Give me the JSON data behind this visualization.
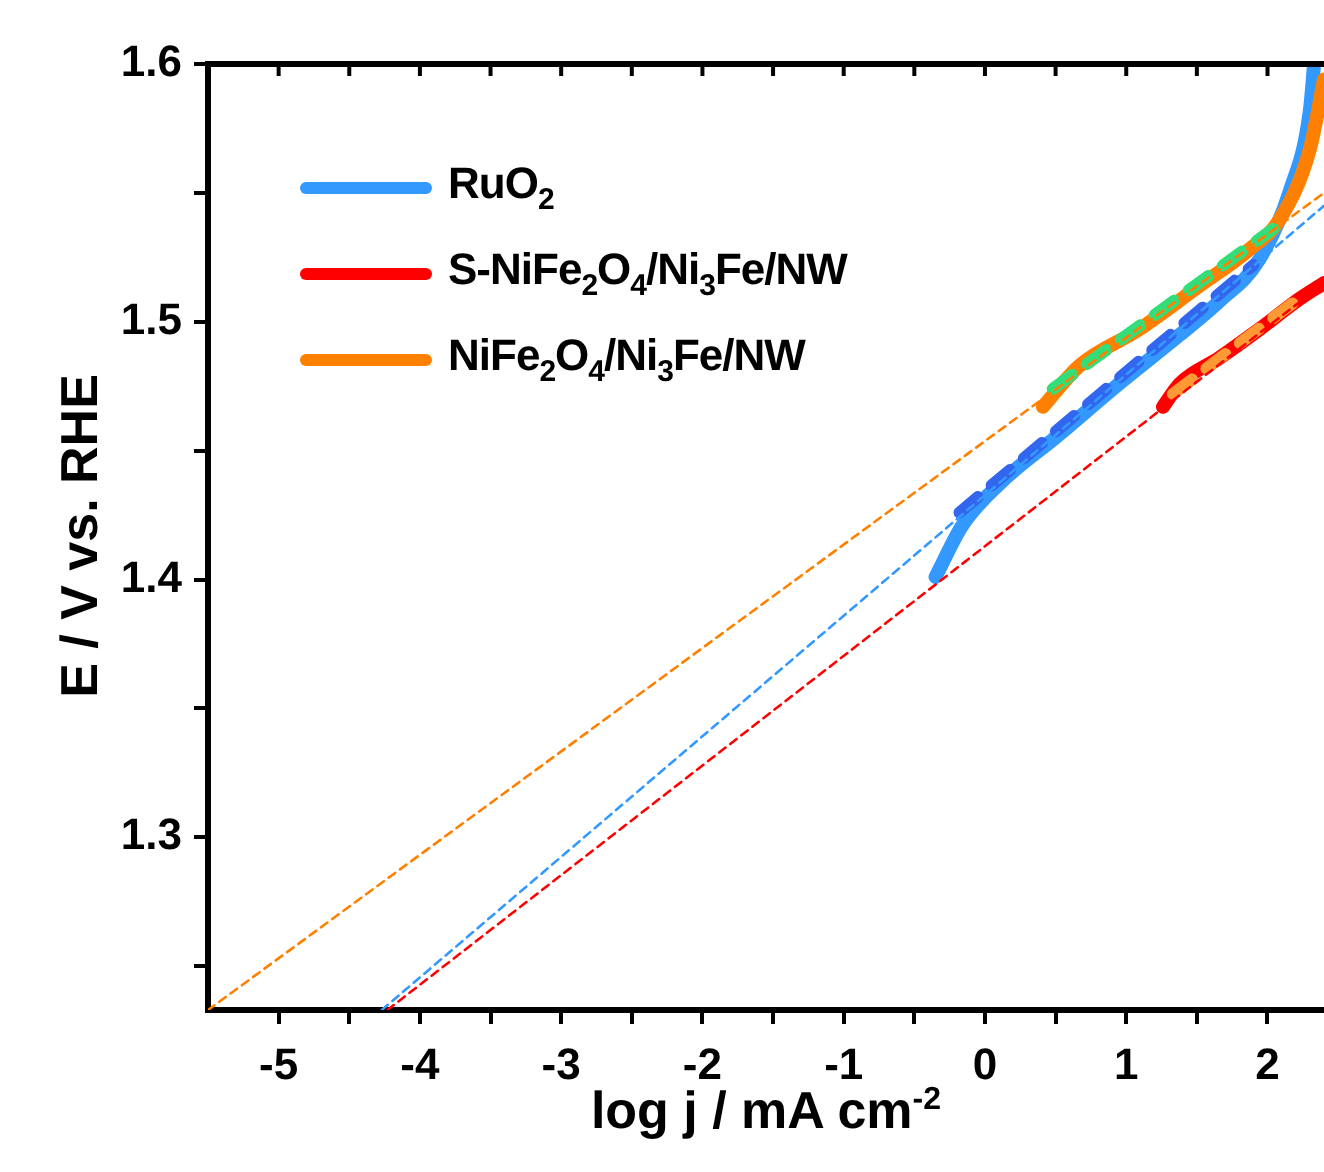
{
  "chart_data": {
    "type": "line",
    "xlabel": "log j / mA cm$^{-2}$",
    "ylabel": "E / V vs. RHE",
    "xlim": [
      -5.5,
      2.4
    ],
    "ylim": [
      1.233,
      1.6
    ],
    "xticks": [
      -5,
      {
        "value": -4.5,
        "label": null
      },
      -4,
      {
        "value": -3.5,
        "label": null
      },
      -3,
      {
        "value": -2.5,
        "label": null
      },
      -2,
      {
        "value": -1.5,
        "label": null
      },
      -1,
      {
        "value": -0.5,
        "label": null
      },
      0,
      {
        "value": 0.5,
        "label": null
      },
      1,
      {
        "value": 1.5,
        "label": null
      },
      2
    ],
    "yticks": [
      {
        "value": 1.25,
        "label": null
      },
      1.3,
      {
        "value": 1.35,
        "label": null
      },
      1.4,
      {
        "value": 1.45,
        "label": null
      },
      1.5,
      {
        "value": 1.55,
        "label": null
      },
      1.6
    ],
    "grid": false,
    "legend": "top left",
    "marker": "none",
    "series": [
      {
        "name": "RuO$_{2}$",
        "color": "#3399ff",
        "line_style": "solid",
        "x": [
          -0.35,
          -0.16,
          0.1,
          0.52,
          0.95,
          1.38,
          1.66,
          1.94,
          2.16,
          2.3,
          2.33
        ],
        "values": [
          1.401,
          1.421,
          1.437,
          1.456,
          1.476,
          1.495,
          1.508,
          1.524,
          1.551,
          1.582,
          1.6
        ]
      },
      {
        "name": "S-NiFe$_{2}$O$_{4}$/Ni$_{3}$Fe/NW",
        "color": "#ff0000",
        "line_style": "solid",
        "x": [
          1.26,
          1.38,
          1.66,
          1.94,
          2.23,
          2.4
        ],
        "values": [
          1.467,
          1.476,
          1.486,
          1.497,
          1.509,
          1.515
        ]
      },
      {
        "name": "NiFe$_{2}$O$_{4}$/Ni$_{3}$Fe/NW",
        "color": "#ff8000",
        "line_style": "solid",
        "x": [
          0.41,
          0.67,
          1.09,
          1.52,
          1.87,
          2.09,
          2.3,
          2.4
        ],
        "values": [
          1.467,
          1.483,
          1.497,
          1.514,
          1.528,
          1.54,
          1.567,
          1.594
        ]
      },
      {
        "color": "#3366ee",
        "line_style": "dashed",
        "x": [
          -0.18,
          1.9
        ],
        "values": [
          1.426,
          1.522
        ]
      },
      {
        "color": "#ff9933",
        "line_style": "dashed",
        "x": [
          1.33,
          2.27
        ],
        "values": [
          1.472,
          1.511
        ]
      },
      {
        "color": "#33dd77",
        "line_style": "dashed",
        "x": [
          0.48,
          2.04
        ],
        "values": [
          1.474,
          1.536
        ]
      },
      {
        "color": "#3399ff",
        "line_style": "dotted",
        "x": [
          -4.27,
          2.4
        ],
        "values": [
          1.233,
          1.545
        ]
      },
      {
        "color": "#ff0000",
        "line_style": "dotted",
        "x": [
          -4.23,
          2.4
        ],
        "values": [
          1.233,
          1.515
        ]
      },
      {
        "color": "#ff8000",
        "line_style": "dotted",
        "x": [
          -5.5,
          2.4
        ],
        "values": [
          1.233,
          1.55
        ]
      }
    ]
  }
}
